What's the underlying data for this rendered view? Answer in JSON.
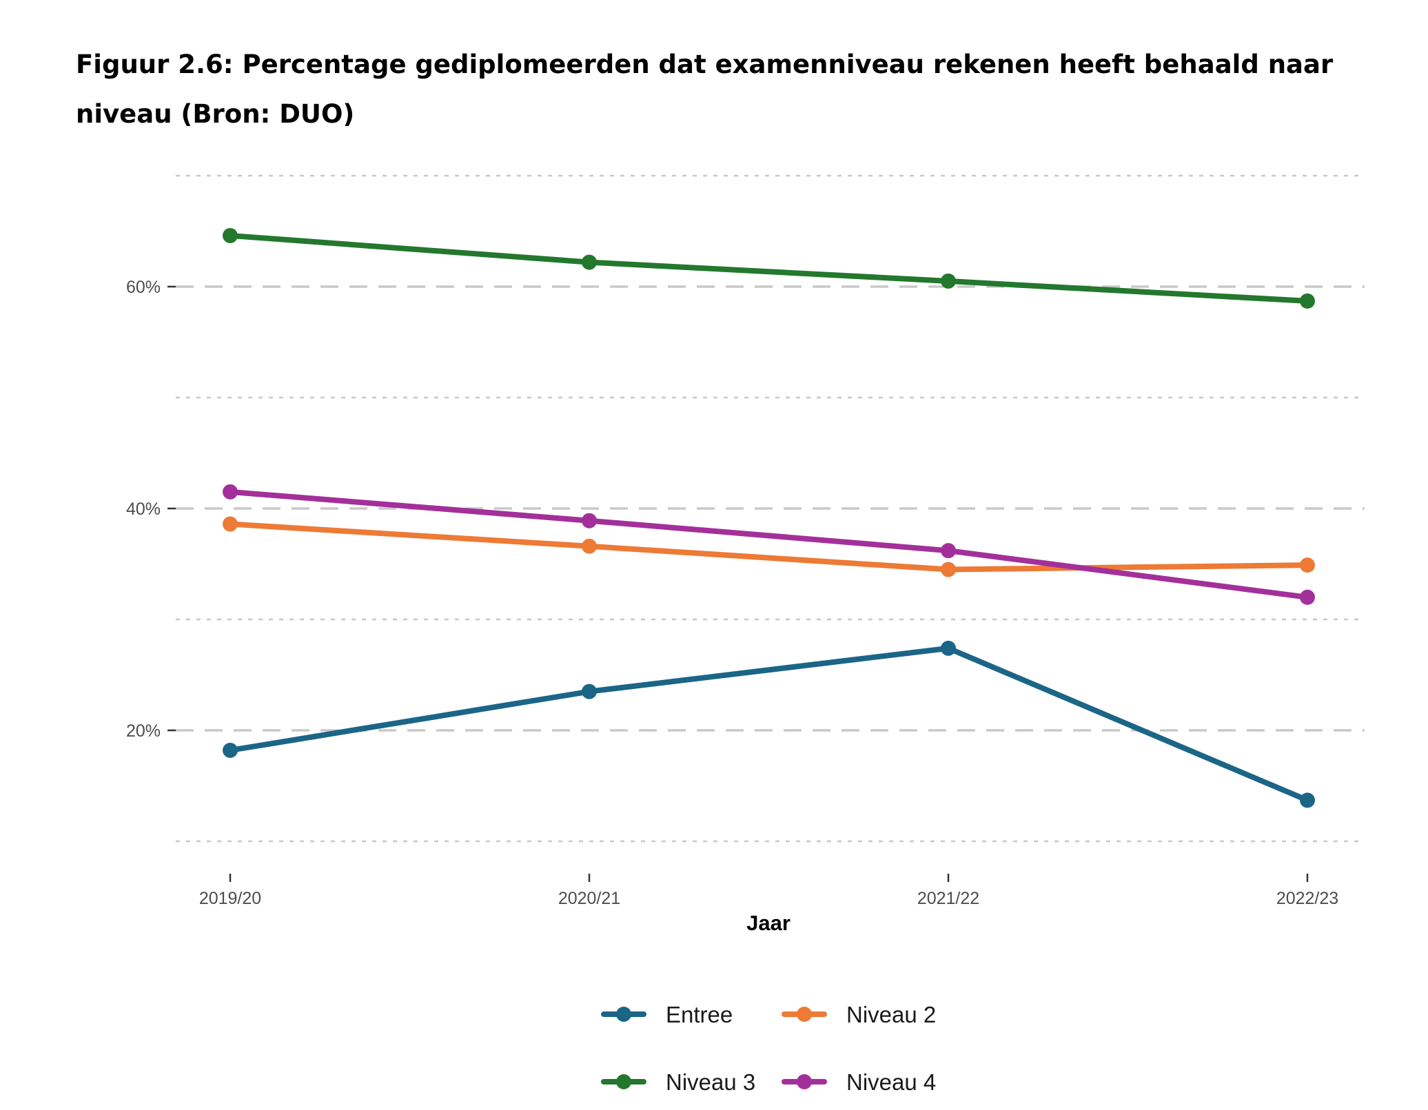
{
  "caption": "Figuur 2.6: Percentage gediplomeerden dat examenniveau rekenen heeft behaald naar niveau (Bron: DUO)",
  "chart_data": {
    "type": "line",
    "title": "",
    "xlabel": "Jaar",
    "ylabel": "",
    "categories": [
      "2019/20",
      "2020/21",
      "2021/22",
      "2022/23"
    ],
    "ylim": [
      10,
      70
    ],
    "yticks": [
      20,
      40,
      60
    ],
    "ytick_labels": [
      "20%",
      "40%",
      "60%"
    ],
    "minor_gridlines": [
      10,
      30,
      50,
      70
    ],
    "grid": true,
    "legend_position": "bottom",
    "series": [
      {
        "name": "Entree",
        "color": "#1b6587",
        "values": [
          18.2,
          23.5,
          27.4,
          13.7
        ]
      },
      {
        "name": "Niveau 2",
        "color": "#ed7a35",
        "values": [
          38.6,
          36.6,
          34.5,
          34.9
        ]
      },
      {
        "name": "Niveau 3",
        "color": "#23782d",
        "values": [
          64.6,
          62.2,
          60.5,
          58.7
        ]
      },
      {
        "name": "Niveau 4",
        "color": "#a3309a",
        "values": [
          41.5,
          38.9,
          36.2,
          32.0
        ]
      }
    ]
  }
}
